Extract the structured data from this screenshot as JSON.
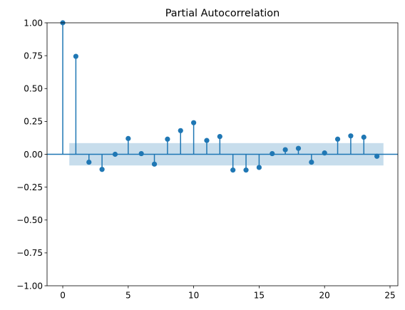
{
  "chart_data": {
    "type": "stem",
    "title": "Partial Autocorrelation",
    "xlabel": "",
    "ylabel": "",
    "xlim": [
      -1.2,
      25.6
    ],
    "ylim": [
      -1.0,
      1.0
    ],
    "xticks": [
      0,
      5,
      10,
      15,
      20,
      25
    ],
    "yticks": [
      -1.0,
      -0.75,
      -0.5,
      -0.25,
      0.0,
      0.25,
      0.5,
      0.75,
      1.0
    ],
    "ytick_labels": [
      "−1.00",
      "−0.75",
      "−0.50",
      "−0.25",
      "0.00",
      "0.25",
      "0.50",
      "0.75",
      "1.00"
    ],
    "xtick_labels": [
      "0",
      "5",
      "10",
      "15",
      "20",
      "25"
    ],
    "confidence_band": {
      "x_start": 0.5,
      "x_end": 24.5,
      "lower": -0.085,
      "upper": 0.085
    },
    "lags": [
      0,
      1,
      2,
      3,
      4,
      5,
      6,
      7,
      8,
      9,
      10,
      11,
      12,
      13,
      14,
      15,
      16,
      17,
      18,
      19,
      20,
      21,
      22,
      23,
      24
    ],
    "values": [
      1.0,
      0.745,
      -0.06,
      -0.115,
      0.0,
      0.12,
      0.005,
      -0.075,
      0.115,
      0.18,
      0.24,
      0.105,
      0.135,
      -0.12,
      -0.12,
      -0.1,
      0.005,
      0.035,
      0.045,
      -0.06,
      0.01,
      0.115,
      0.14,
      0.13,
      -0.015
    ],
    "colors": {
      "stem": "#1f77b4",
      "band": "#1f77b4",
      "zero_line": "#1f77b4"
    }
  }
}
